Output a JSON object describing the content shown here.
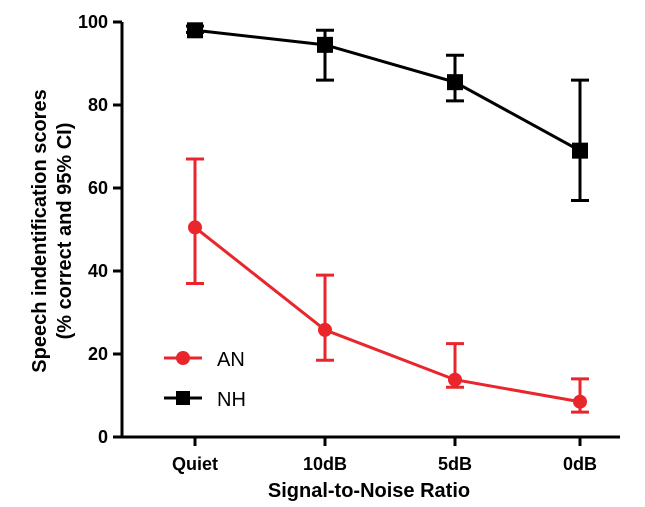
{
  "chart_data": {
    "type": "line",
    "xlabel": "Signal-to-Noise Ratio",
    "ylabel": [
      "Speech indentification scores",
      "(% correct and 95% CI)"
    ],
    "categories": [
      "Quiet",
      "10dB",
      "5dB",
      "0dB"
    ],
    "ylim": [
      0,
      100
    ],
    "yticks": [
      0,
      20,
      40,
      60,
      80,
      100
    ],
    "grid": false,
    "legend_position": "bottom-left",
    "series": [
      {
        "name": "AN",
        "color": "#e8262b",
        "marker": "circle",
        "values": [
          50.5,
          25.8,
          13.8,
          8.5
        ],
        "ci_low": [
          37,
          18.5,
          12,
          6
        ],
        "ci_high": [
          67,
          39,
          22.5,
          14
        ]
      },
      {
        "name": "NH",
        "color": "#000000",
        "marker": "square",
        "values": [
          98,
          94.5,
          85.5,
          69
        ],
        "ci_low": [
          97.5,
          86,
          81,
          57
        ],
        "ci_high": [
          99,
          98,
          92,
          86
        ]
      }
    ]
  }
}
